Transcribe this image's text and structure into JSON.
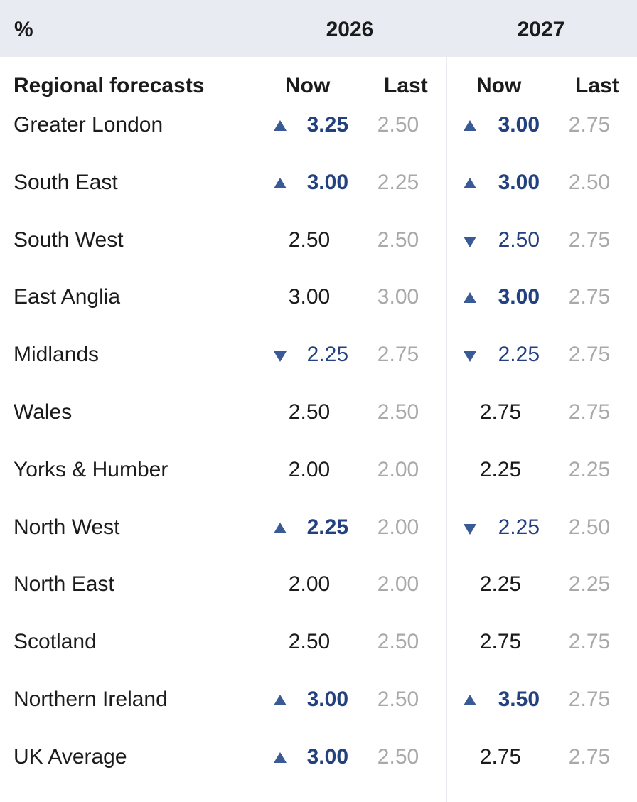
{
  "header": {
    "unit": "%",
    "year_a": "2026",
    "year_b": "2027"
  },
  "subheader": {
    "section_title": "Regional forecasts",
    "now_a": "Now",
    "last_a": "Last",
    "now_b": "Now",
    "last_b": "Last"
  },
  "colors": {
    "header_bg": "#e8ecf2",
    "changed_value": "#22417e",
    "arrow": "#3a5a96",
    "last_value": "#a9a9a9"
  },
  "rows": [
    {
      "region": "Greater London",
      "now_2026": "3.25",
      "dir_2026": "up",
      "last_2026": "2.50",
      "now_2027": "3.00",
      "dir_2027": "up",
      "last_2027": "2.75"
    },
    {
      "region": "South East",
      "now_2026": "3.00",
      "dir_2026": "up",
      "last_2026": "2.25",
      "now_2027": "3.00",
      "dir_2027": "up",
      "last_2027": "2.50"
    },
    {
      "region": "South West",
      "now_2026": "2.50",
      "dir_2026": "same",
      "last_2026": "2.50",
      "now_2027": "2.50",
      "dir_2027": "down",
      "last_2027": "2.75"
    },
    {
      "region": "East Anglia",
      "now_2026": "3.00",
      "dir_2026": "same",
      "last_2026": "3.00",
      "now_2027": "3.00",
      "dir_2027": "up",
      "last_2027": "2.75"
    },
    {
      "region": "Midlands",
      "now_2026": "2.25",
      "dir_2026": "down",
      "last_2026": "2.75",
      "now_2027": "2.25",
      "dir_2027": "down",
      "last_2027": "2.75"
    },
    {
      "region": "Wales",
      "now_2026": "2.50",
      "dir_2026": "same",
      "last_2026": "2.50",
      "now_2027": "2.75",
      "dir_2027": "same",
      "last_2027": "2.75"
    },
    {
      "region": "Yorks & Humber",
      "now_2026": "2.00",
      "dir_2026": "same",
      "last_2026": "2.00",
      "now_2027": "2.25",
      "dir_2027": "same",
      "last_2027": "2.25"
    },
    {
      "region": "North West",
      "now_2026": "2.25",
      "dir_2026": "up",
      "last_2026": "2.00",
      "now_2027": "2.25",
      "dir_2027": "down",
      "last_2027": "2.50"
    },
    {
      "region": "North East",
      "now_2026": "2.00",
      "dir_2026": "same",
      "last_2026": "2.00",
      "now_2027": "2.25",
      "dir_2027": "same",
      "last_2027": "2.25"
    },
    {
      "region": "Scotland",
      "now_2026": "2.50",
      "dir_2026": "same",
      "last_2026": "2.50",
      "now_2027": "2.75",
      "dir_2027": "same",
      "last_2027": "2.75"
    },
    {
      "region": "Northern Ireland",
      "now_2026": "3.00",
      "dir_2026": "up",
      "last_2026": "2.50",
      "now_2027": "3.50",
      "dir_2027": "up",
      "last_2027": "2.75"
    },
    {
      "region": "UK Average",
      "now_2026": "3.00",
      "dir_2026": "up",
      "last_2026": "2.50",
      "now_2027": "2.75",
      "dir_2027": "same",
      "last_2027": "2.75"
    }
  ]
}
